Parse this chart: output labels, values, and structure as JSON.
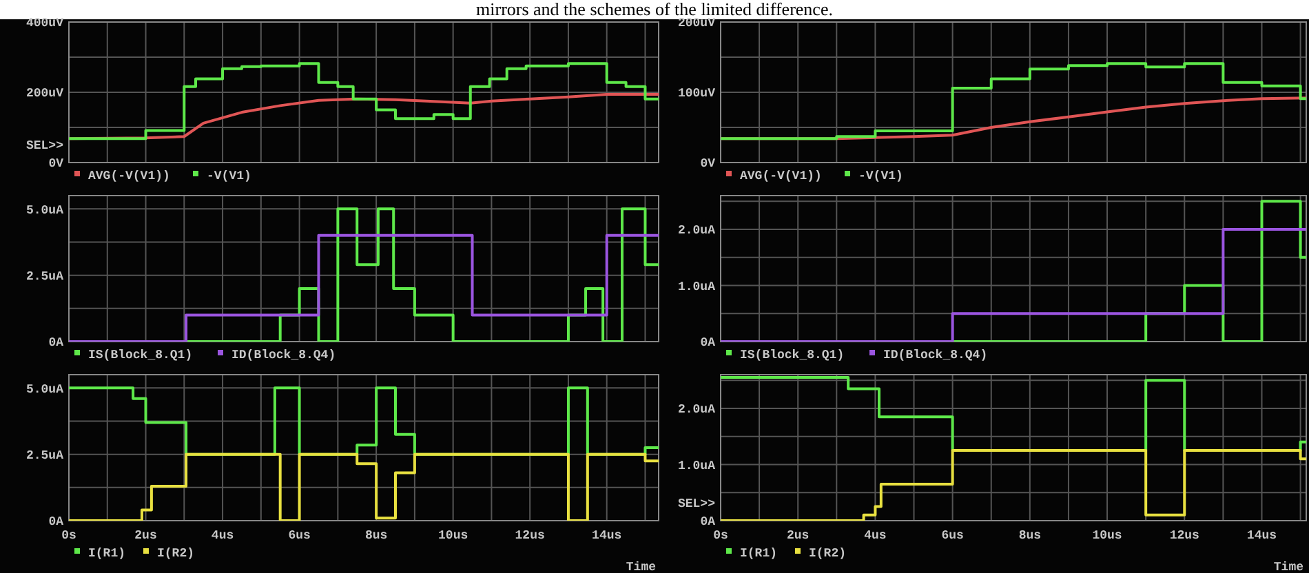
{
  "chart_data": [
    {
      "type": "step",
      "title": "mirrors and the schemes of the limited difference.",
      "annotations": [
        "SEL>>"
      ],
      "xlim": [
        0,
        15.35
      ],
      "xticks": [
        0,
        1,
        2,
        3,
        4,
        5,
        6,
        7,
        8,
        9,
        10,
        11,
        12,
        13,
        14,
        15
      ],
      "ylim": [
        0,
        400
      ],
      "yticks": [
        {
          "value": 0,
          "label": "0V"
        },
        {
          "value": 100,
          "label": null
        },
        {
          "value": 200,
          "label": "200uV"
        },
        {
          "value": 300,
          "label": null
        },
        {
          "value": 400,
          "label": "400uV"
        }
      ],
      "tick_labels": "y",
      "grid": true,
      "legend": "bottom",
      "series": [
        {
          "name": "AVG(-V(V1))",
          "type": "line",
          "color": "#e05555",
          "x": [
            0,
            2,
            3,
            3.5,
            4.5,
            5.5,
            6.5,
            7.5,
            8.5,
            9.5,
            10.45,
            11,
            12,
            13,
            14,
            15.35
          ],
          "values": [
            68,
            70,
            74,
            112,
            143,
            162,
            177,
            181,
            179,
            174,
            169,
            175,
            181,
            187,
            194,
            194
          ]
        },
        {
          "name": "-V(V1)",
          "type": "step",
          "color": "#5ee84a",
          "x": [
            0,
            2,
            3,
            3.3,
            4,
            4.5,
            5,
            6,
            6.5,
            7,
            7.4,
            8,
            8.5,
            9.5,
            10,
            10.45,
            10.95,
            11.4,
            11.9,
            13,
            14,
            14.5,
            15,
            15.35
          ],
          "values": [
            68,
            91,
            216,
            238,
            267,
            273,
            275,
            282,
            228,
            216,
            181,
            150,
            125,
            137,
            125,
            216,
            238,
            267,
            275,
            282,
            228,
            216,
            181,
            181
          ]
        }
      ]
    },
    {
      "type": "step",
      "xlim": [
        0,
        15.15
      ],
      "xticks": [
        0,
        1,
        2,
        3,
        4,
        5,
        6,
        7,
        8,
        9,
        10,
        11,
        12,
        13,
        14,
        15
      ],
      "ylim": [
        0,
        200
      ],
      "yticks": [
        {
          "value": 0,
          "label": "0V"
        },
        {
          "value": 50,
          "label": null
        },
        {
          "value": 100,
          "label": "100uV"
        },
        {
          "value": 150,
          "label": null
        },
        {
          "value": 200,
          "label": "200uV"
        }
      ],
      "tick_labels": "y",
      "grid": true,
      "legend": "bottom",
      "series": [
        {
          "name": "AVG(-V(V1))",
          "type": "line",
          "color": "#e05555",
          "x": [
            0,
            3,
            5,
            6,
            7,
            8,
            9,
            10,
            11,
            12,
            13,
            14,
            15.15
          ],
          "values": [
            34,
            34,
            37,
            39,
            50,
            58,
            65,
            72,
            79,
            84,
            88,
            91,
            92
          ]
        },
        {
          "name": "-V(V1)",
          "type": "step",
          "color": "#5ee84a",
          "x": [
            0,
            3,
            4,
            6,
            7,
            8,
            9,
            10,
            11,
            12,
            13,
            14,
            15,
            15.15
          ],
          "values": [
            34,
            37,
            45,
            106,
            119,
            133,
            138,
            141,
            136,
            141,
            114,
            109,
            91,
            91
          ]
        }
      ]
    },
    {
      "type": "step",
      "xlim": [
        0,
        15.35
      ],
      "xticks": [
        0,
        1,
        2,
        3,
        4,
        5,
        6,
        7,
        8,
        9,
        10,
        11,
        12,
        13,
        14,
        15
      ],
      "ylim": [
        0,
        5.5
      ],
      "yticks": [
        {
          "value": 0,
          "label": "0A"
        },
        {
          "value": 1.25,
          "label": null
        },
        {
          "value": 2.5,
          "label": "2.5uA"
        },
        {
          "value": 3.75,
          "label": null
        },
        {
          "value": 5,
          "label": "5.0uA"
        }
      ],
      "tick_labels": "y",
      "grid": true,
      "legend": "bottom",
      "series": [
        {
          "name": "IS(Block_8.Q1)",
          "type": "step",
          "color": "#5ee84a",
          "x": [
            0,
            5.5,
            6,
            6.5,
            7,
            7.5,
            8.05,
            8.45,
            9,
            10,
            13,
            13.45,
            13.9,
            14.4,
            15,
            15.35
          ],
          "values": [
            0,
            1,
            2,
            0,
            5,
            2.9,
            5,
            2,
            1,
            0,
            1,
            2,
            0,
            5,
            2.9,
            2.9
          ]
        },
        {
          "name": "ID(Block_8.Q4)",
          "type": "step",
          "color": "#9b55e0",
          "x": [
            0,
            3.05,
            6.5,
            10.5,
            14,
            15.35
          ],
          "values": [
            0,
            1,
            4,
            1,
            4,
            4
          ]
        }
      ]
    },
    {
      "type": "step",
      "xlim": [
        0,
        15.15
      ],
      "xticks": [
        0,
        1,
        2,
        3,
        4,
        5,
        6,
        7,
        8,
        9,
        10,
        11,
        12,
        13,
        14,
        15
      ],
      "ylim": [
        0,
        2.6
      ],
      "yticks": [
        {
          "value": 0,
          "label": "0A"
        },
        {
          "value": 0.5,
          "label": null
        },
        {
          "value": 1,
          "label": "1.0uA"
        },
        {
          "value": 1.5,
          "label": null
        },
        {
          "value": 2,
          "label": "2.0uA"
        },
        {
          "value": 2.5,
          "label": null
        }
      ],
      "tick_labels": "y",
      "grid": true,
      "legend": "bottom",
      "series": [
        {
          "name": "IS(Block_8.Q1)",
          "type": "step",
          "color": "#5ee84a",
          "x": [
            0,
            11,
            12,
            13,
            14,
            15,
            15.15
          ],
          "values": [
            0,
            0.5,
            1,
            0,
            2.5,
            1.5,
            1.5
          ]
        },
        {
          "name": "ID(Block_8.Q4)",
          "type": "step",
          "color": "#9b55e0",
          "x": [
            0,
            6,
            13,
            15.15
          ],
          "values": [
            0,
            0.5,
            2,
            2
          ]
        }
      ]
    },
    {
      "type": "step",
      "xlabel": "Time",
      "xlim": [
        0,
        15.35
      ],
      "xticks": [
        {
          "value": 0,
          "label": "0s"
        },
        {
          "value": 1,
          "label": null
        },
        {
          "value": 2,
          "label": "2us"
        },
        {
          "value": 3,
          "label": null
        },
        {
          "value": 4,
          "label": "4us"
        },
        {
          "value": 5,
          "label": null
        },
        {
          "value": 6,
          "label": "6us"
        },
        {
          "value": 7,
          "label": null
        },
        {
          "value": 8,
          "label": "8us"
        },
        {
          "value": 9,
          "label": null
        },
        {
          "value": 10,
          "label": "10us"
        },
        {
          "value": 11,
          "label": null
        },
        {
          "value": 12,
          "label": "12us"
        },
        {
          "value": 13,
          "label": null
        },
        {
          "value": 14,
          "label": "14us"
        },
        {
          "value": 15,
          "label": null
        }
      ],
      "ylim": [
        0,
        5.5
      ],
      "yticks": [
        {
          "value": 0,
          "label": "0A"
        },
        {
          "value": 1.25,
          "label": null
        },
        {
          "value": 2.5,
          "label": "2.5uA"
        },
        {
          "value": 3.75,
          "label": null
        },
        {
          "value": 5,
          "label": "5.0uA"
        }
      ],
      "grid": true,
      "legend": "bottom",
      "series": [
        {
          "name": "I(R1)",
          "type": "step",
          "color": "#5ee84a",
          "x": [
            0,
            1.67,
            2,
            3.05,
            5.36,
            6,
            7.5,
            8,
            8.5,
            9,
            13,
            13.5,
            15,
            15.35
          ],
          "values": [
            5,
            4.6,
            3.7,
            2.5,
            5,
            2.5,
            2.85,
            5,
            3.25,
            2.5,
            5,
            2.5,
            2.75,
            2.75
          ]
        },
        {
          "name": "I(R2)",
          "type": "step",
          "color": "#e8e040",
          "x": [
            0,
            1.9,
            2.15,
            3.05,
            5.5,
            6,
            7.5,
            8,
            8.5,
            9,
            13,
            13.5,
            15,
            15.35
          ],
          "values": [
            0,
            0.4,
            1.3,
            2.5,
            0,
            2.5,
            2.15,
            0.1,
            1.8,
            2.5,
            0,
            2.5,
            2.25,
            2.25
          ]
        }
      ]
    },
    {
      "type": "step",
      "xlabel": "Time",
      "annotations": [
        "SEL>>"
      ],
      "xlim": [
        0,
        15.15
      ],
      "xticks": [
        {
          "value": 0,
          "label": "0s"
        },
        {
          "value": 1,
          "label": null
        },
        {
          "value": 2,
          "label": "2us"
        },
        {
          "value": 3,
          "label": null
        },
        {
          "value": 4,
          "label": "4us"
        },
        {
          "value": 5,
          "label": null
        },
        {
          "value": 6,
          "label": "6us"
        },
        {
          "value": 7,
          "label": null
        },
        {
          "value": 8,
          "label": "8us"
        },
        {
          "value": 9,
          "label": null
        },
        {
          "value": 10,
          "label": "10us"
        },
        {
          "value": 11,
          "label": null
        },
        {
          "value": 12,
          "label": "12us"
        },
        {
          "value": 13,
          "label": null
        },
        {
          "value": 14,
          "label": "14us"
        },
        {
          "value": 15,
          "label": null
        }
      ],
      "ylim": [
        0,
        2.6
      ],
      "yticks": [
        {
          "value": 0,
          "label": "0A"
        },
        {
          "value": 0.5,
          "label": null
        },
        {
          "value": 1,
          "label": "1.0uA"
        },
        {
          "value": 1.5,
          "label": null
        },
        {
          "value": 2,
          "label": "2.0uA"
        },
        {
          "value": 2.5,
          "label": null
        }
      ],
      "grid": true,
      "legend": "bottom",
      "series": [
        {
          "name": "I(R1)",
          "type": "step",
          "color": "#5ee84a",
          "x": [
            0,
            3.3,
            4.1,
            6,
            11,
            12,
            15,
            15.15
          ],
          "values": [
            2.55,
            2.35,
            1.85,
            1.25,
            2.5,
            1.25,
            1.4,
            1.4
          ]
        },
        {
          "name": "I(R2)",
          "type": "step",
          "color": "#e8e040",
          "x": [
            0,
            3.7,
            4,
            4.15,
            6,
            11,
            12,
            15,
            15.15
          ],
          "values": [
            0,
            0.1,
            0.25,
            0.65,
            1.25,
            0.1,
            1.25,
            1.1,
            1.1
          ]
        }
      ]
    }
  ]
}
